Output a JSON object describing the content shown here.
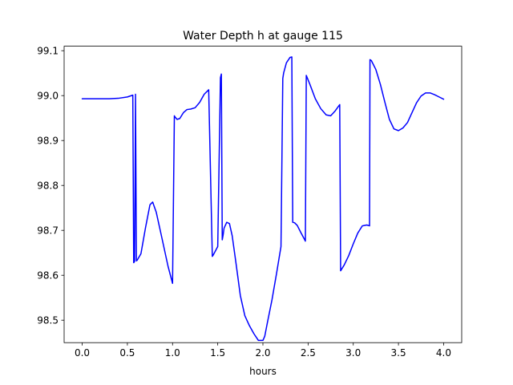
{
  "chart_data": {
    "type": "line",
    "title": "Water Depth h at gauge 115",
    "xlabel": "hours",
    "ylabel": "",
    "xlim": [
      -0.2,
      4.2
    ],
    "ylim": [
      98.45,
      99.11
    ],
    "xticks": [
      0.0,
      0.5,
      1.0,
      1.5,
      2.0,
      2.5,
      3.0,
      3.5,
      4.0
    ],
    "xtick_labels": [
      "0.0",
      "0.5",
      "1.0",
      "1.5",
      "2.0",
      "2.5",
      "3.0",
      "3.5",
      "4.0"
    ],
    "yticks": [
      98.5,
      98.6,
      98.7,
      98.8,
      98.9,
      99.0,
      99.1
    ],
    "ytick_labels": [
      "98.5",
      "98.6",
      "98.7",
      "98.8",
      "98.9",
      "99.0",
      "99.1"
    ],
    "grid": false,
    "series": [
      {
        "color": "#0000ff",
        "x": [
          0.0,
          0.1,
          0.2,
          0.3,
          0.4,
          0.5,
          0.56,
          0.57,
          0.58,
          0.59,
          0.6,
          0.61,
          0.65,
          0.7,
          0.75,
          0.78,
          0.82,
          0.88,
          0.95,
          1.0,
          1.02,
          1.025,
          1.05,
          1.08,
          1.12,
          1.16,
          1.2,
          1.25,
          1.3,
          1.35,
          1.4,
          1.44,
          1.45,
          1.5,
          1.53,
          1.54,
          1.55,
          1.56,
          1.57,
          1.6,
          1.63,
          1.66,
          1.7,
          1.75,
          1.8,
          1.85,
          1.9,
          1.95,
          2.0,
          2.02,
          2.05,
          2.1,
          2.15,
          2.2,
          2.22,
          2.23,
          2.26,
          2.3,
          2.32,
          2.33,
          2.35,
          2.38,
          2.42,
          2.46,
          2.47,
          2.48,
          2.52,
          2.58,
          2.64,
          2.7,
          2.75,
          2.8,
          2.85,
          2.86,
          2.9,
          2.95,
          3.0,
          3.05,
          3.1,
          3.15,
          3.18,
          3.185,
          3.2,
          3.25,
          3.3,
          3.35,
          3.4,
          3.45,
          3.5,
          3.55,
          3.6,
          3.65,
          3.7,
          3.75,
          3.8,
          3.85,
          3.9,
          3.95,
          4.0
        ],
        "y": [
          98.993,
          98.993,
          98.993,
          98.993,
          98.994,
          98.997,
          99.001,
          98.628,
          98.631,
          99.003,
          98.632,
          98.634,
          98.648,
          98.705,
          98.757,
          98.763,
          98.74,
          98.685,
          98.62,
          98.582,
          98.955,
          98.953,
          98.947,
          98.949,
          98.962,
          98.969,
          98.97,
          98.973,
          98.985,
          99.003,
          99.013,
          98.642,
          98.645,
          98.664,
          99.04,
          99.048,
          98.679,
          98.69,
          98.705,
          98.718,
          98.715,
          98.688,
          98.63,
          98.555,
          98.51,
          98.488,
          98.47,
          98.455,
          98.455,
          98.464,
          98.495,
          98.545,
          98.603,
          98.664,
          99.038,
          99.051,
          99.073,
          99.085,
          99.086,
          98.718,
          98.717,
          98.711,
          98.695,
          98.68,
          98.676,
          99.045,
          99.025,
          98.993,
          98.971,
          98.957,
          98.955,
          98.966,
          98.98,
          98.61,
          98.623,
          98.644,
          98.67,
          98.694,
          98.71,
          98.712,
          98.71,
          99.08,
          99.078,
          99.058,
          99.025,
          98.985,
          98.947,
          98.926,
          98.922,
          98.928,
          98.94,
          98.962,
          98.984,
          98.999,
          99.006,
          99.006,
          99.002,
          98.997,
          98.992
        ]
      }
    ]
  }
}
